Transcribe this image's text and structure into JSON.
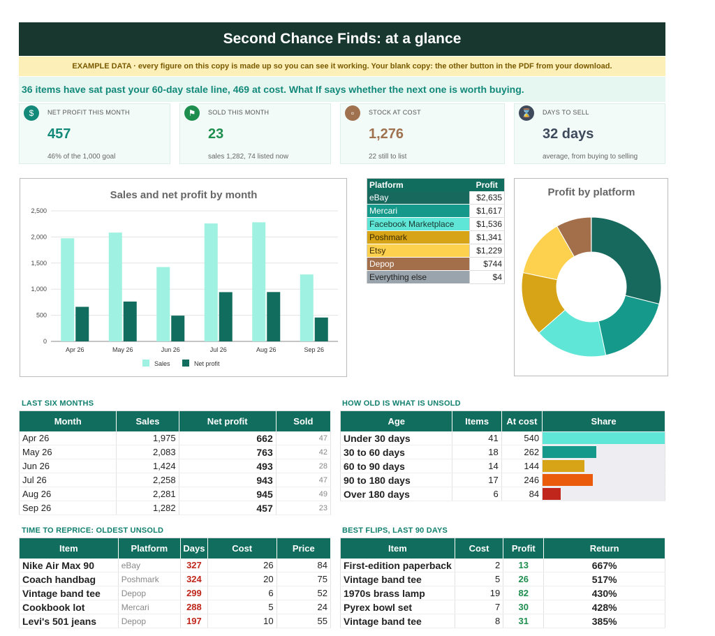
{
  "title": "Second Chance Finds: at a glance",
  "example_note": "EXAMPLE DATA  ·  every figure on this copy is made up so you can see it working. Your blank copy: the other button in the PDF from your download.",
  "stale_note": "36 items have sat past your 60-day stale line, 469 at cost. What If says whether the next one is worth buying.",
  "kpis": [
    {
      "label": "NET PROFIT THIS MONTH",
      "value": "457",
      "sub": "46% of the 1,000 goal",
      "icon": "dollar-icon",
      "color": "#13897a",
      "value_color": "#13897a"
    },
    {
      "label": "SOLD THIS MONTH",
      "value": "23",
      "sub": "sales 1,282, 74 listed now",
      "icon": "tag-icon",
      "color": "#1e8e4e",
      "value_color": "#1e8e4e"
    },
    {
      "label": "STOCK AT COST",
      "value": "1,276",
      "sub": "22 still to list",
      "icon": "box-icon",
      "color": "#a0714e",
      "value_color": "#a0714e"
    },
    {
      "label": "DAYS TO SELL",
      "value": "32 days",
      "sub": "average, from buying to selling",
      "icon": "hourglass-icon",
      "color": "#3e4a5c",
      "value_color": "#3e4a5c"
    }
  ],
  "chart_data": [
    {
      "type": "bar",
      "title": "Sales and net profit by month",
      "categories": [
        "Apr 26",
        "May 26",
        "Jun 26",
        "Jul 26",
        "Aug 26",
        "Sep 26"
      ],
      "series": [
        {
          "name": "Sales",
          "values": [
            1975,
            2083,
            1424,
            2258,
            2281,
            1282
          ],
          "color": "#9ff1e1"
        },
        {
          "name": "Net profit",
          "values": [
            662,
            763,
            493,
            943,
            945,
            457
          ],
          "color": "#116d5d"
        }
      ],
      "ylim": [
        0,
        2500
      ],
      "yticks": [
        "0",
        "500",
        "1,000",
        "1,500",
        "2,000",
        "2,500"
      ],
      "legend": "bottom",
      "grid": true
    },
    {
      "type": "pie",
      "title": "Profit by platform",
      "labels": [
        "eBay",
        "Mercari",
        "Facebook Marketplace",
        "Poshmark",
        "Etsy",
        "Depop",
        "Everything else"
      ],
      "values": [
        2635,
        1617,
        1536,
        1341,
        1229,
        744,
        4
      ],
      "colors": [
        "#17695e",
        "#14998a",
        "#5fe6d6",
        "#d6a416",
        "#fdd14e",
        "#a36e4a",
        "#9aa4ad"
      ]
    }
  ],
  "platform_table": {
    "headers": [
      "Platform",
      "Profit"
    ],
    "rows": [
      {
        "name": "eBay",
        "profit": "$2,635",
        "bg": "#17695e",
        "fg": "#ffffff"
      },
      {
        "name": "Mercari",
        "profit": "$1,617",
        "bg": "#14998a",
        "fg": "#ffffff"
      },
      {
        "name": "Facebook Marketplace",
        "profit": "$1,536",
        "bg": "#5fe6d6",
        "fg": "#17372f"
      },
      {
        "name": "Poshmark",
        "profit": "$1,341",
        "bg": "#d6a416",
        "fg": "#3a2a00"
      },
      {
        "name": "Etsy",
        "profit": "$1,229",
        "bg": "#fdd14e",
        "fg": "#3a2a00"
      },
      {
        "name": "Depop",
        "profit": "$744",
        "bg": "#a36e4a",
        "fg": "#ffffff"
      },
      {
        "name": "Everything else",
        "profit": "$4",
        "bg": "#9aa4ad",
        "fg": "#222222"
      }
    ]
  },
  "last_six": {
    "title": "LAST SIX MONTHS",
    "headers": [
      "Month",
      "Sales",
      "Net profit",
      "Sold"
    ],
    "rows": [
      [
        "Apr 26",
        "1,975",
        "662",
        "47"
      ],
      [
        "May 26",
        "2,083",
        "763",
        "42"
      ],
      [
        "Jun 26",
        "1,424",
        "493",
        "28"
      ],
      [
        "Jul 26",
        "2,258",
        "943",
        "47"
      ],
      [
        "Aug 26",
        "2,281",
        "945",
        "49"
      ],
      [
        "Sep 26",
        "1,282",
        "457",
        "23"
      ]
    ]
  },
  "unsold_age": {
    "title": "HOW OLD IS WHAT IS UNSOLD",
    "headers": [
      "Age",
      "Items",
      "At cost",
      "Share"
    ],
    "rows": [
      {
        "age": "Under 30 days",
        "items": "41",
        "cost": "540",
        "share": 1.0,
        "color": "#5fe6d6"
      },
      {
        "age": "30 to 60 days",
        "items": "18",
        "cost": "262",
        "share": 0.44,
        "color": "#14998a"
      },
      {
        "age": "60 to 90 days",
        "items": "14",
        "cost": "144",
        "share": 0.34,
        "color": "#d6a416"
      },
      {
        "age": "90 to 180 days",
        "items": "17",
        "cost": "246",
        "share": 0.41,
        "color": "#ea5b0c"
      },
      {
        "age": "Over 180 days",
        "items": "6",
        "cost": "84",
        "share": 0.15,
        "color": "#c0261c"
      }
    ]
  },
  "reprice": {
    "title": "TIME TO REPRICE: OLDEST UNSOLD",
    "headers": [
      "Item",
      "Platform",
      "Days",
      "Cost",
      "Price"
    ],
    "rows": [
      [
        "Nike Air Max 90",
        "eBay",
        "327",
        "26",
        "84"
      ],
      [
        "Coach handbag",
        "Poshmark",
        "324",
        "20",
        "75"
      ],
      [
        "Vintage band tee",
        "Depop",
        "299",
        "6",
        "52"
      ],
      [
        "Cookbook lot",
        "Mercari",
        "288",
        "5",
        "24"
      ],
      [
        "Levi's 501 jeans",
        "Depop",
        "197",
        "10",
        "55"
      ]
    ]
  },
  "best_flips": {
    "title": "BEST FLIPS, LAST 90 DAYS",
    "headers": [
      "Item",
      "Cost",
      "Profit",
      "Return"
    ],
    "rows": [
      [
        "First-edition paperback",
        "2",
        "13",
        "667%"
      ],
      [
        "Vintage band tee",
        "5",
        "26",
        "517%"
      ],
      [
        "1970s brass lamp",
        "19",
        "82",
        "430%"
      ],
      [
        "Pyrex bowl set",
        "7",
        "30",
        "428%"
      ],
      [
        "Vintage band tee",
        "8",
        "31",
        "385%"
      ]
    ]
  }
}
